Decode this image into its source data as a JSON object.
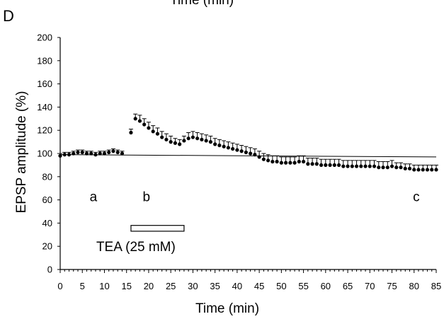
{
  "header_fragment": "Time (min)",
  "panel_label": "D",
  "chart_data": {
    "type": "scatter",
    "xlabel": "Time (min)",
    "ylabel": "EPSP amplitude (%)",
    "xlim": [
      0,
      85
    ],
    "ylim": [
      0,
      200
    ],
    "xticks": [
      0,
      5,
      10,
      15,
      20,
      25,
      30,
      35,
      40,
      45,
      50,
      55,
      60,
      65,
      70,
      75,
      80,
      85
    ],
    "yticks": [
      0,
      20,
      40,
      60,
      80,
      100,
      120,
      140,
      160,
      180,
      200
    ],
    "reference_line": {
      "start": [
        0,
        99
      ],
      "end": [
        85,
        97
      ]
    },
    "annotations": [
      {
        "text": "a",
        "x": 7.5,
        "y": 63
      },
      {
        "text": "b",
        "x": 19.5,
        "y": 63
      },
      {
        "text": "c",
        "x": 80.5,
        "y": 63
      }
    ],
    "drug_application": {
      "label": "TEA (25 mM)",
      "start": 16,
      "end": 28
    },
    "series": [
      {
        "x": [
          0,
          1,
          2,
          3,
          4,
          5,
          6,
          7,
          8,
          9,
          10,
          11,
          12,
          13,
          14,
          16,
          17,
          18,
          19,
          20,
          21,
          22,
          23,
          24,
          25,
          26,
          27,
          28,
          29,
          30,
          31,
          32,
          33,
          34,
          35,
          36,
          37,
          38,
          39,
          40,
          41,
          42,
          43,
          44,
          45,
          46,
          47,
          48,
          49,
          50,
          51,
          52,
          53,
          54,
          55,
          56,
          57,
          58,
          59,
          60,
          61,
          62,
          63,
          64,
          65,
          66,
          67,
          68,
          69,
          70,
          71,
          72,
          73,
          74,
          75,
          76,
          77,
          78,
          79,
          80,
          81,
          82,
          83,
          84,
          85
        ],
        "y": [
          98,
          99,
          99,
          100,
          101,
          101,
          100,
          100,
          99,
          100,
          100,
          101,
          102,
          101,
          100,
          118,
          130,
          128,
          125,
          122,
          119,
          117,
          114,
          112,
          110,
          109,
          108,
          111,
          113,
          114,
          113,
          112,
          111,
          110,
          108,
          107,
          106,
          105,
          104,
          103,
          102,
          101,
          100,
          99,
          97,
          95,
          94,
          93,
          93,
          92,
          92,
          92,
          92,
          93,
          93,
          91,
          91,
          91,
          90,
          90,
          90,
          90,
          90,
          89,
          89,
          89,
          89,
          89,
          89,
          89,
          89,
          88,
          88,
          88,
          89,
          88,
          88,
          87,
          87,
          86,
          86,
          86,
          86,
          86,
          86
        ],
        "err": [
          2,
          2,
          2,
          2,
          2,
          2,
          2,
          2,
          2,
          2,
          2,
          2,
          2,
          2,
          2,
          3,
          4,
          5,
          5,
          5,
          5,
          5,
          5,
          5,
          5,
          4,
          4,
          4,
          5,
          5,
          5,
          5,
          5,
          5,
          5,
          5,
          5,
          5,
          5,
          5,
          5,
          5,
          5,
          5,
          5,
          5,
          5,
          5,
          5,
          5,
          5,
          5,
          5,
          5,
          5,
          5,
          5,
          5,
          5,
          5,
          5,
          5,
          5,
          5,
          5,
          5,
          5,
          5,
          5,
          5,
          5,
          5,
          5,
          5,
          5,
          4,
          4,
          4,
          4,
          4,
          4,
          4,
          4,
          4,
          4
        ]
      }
    ]
  }
}
